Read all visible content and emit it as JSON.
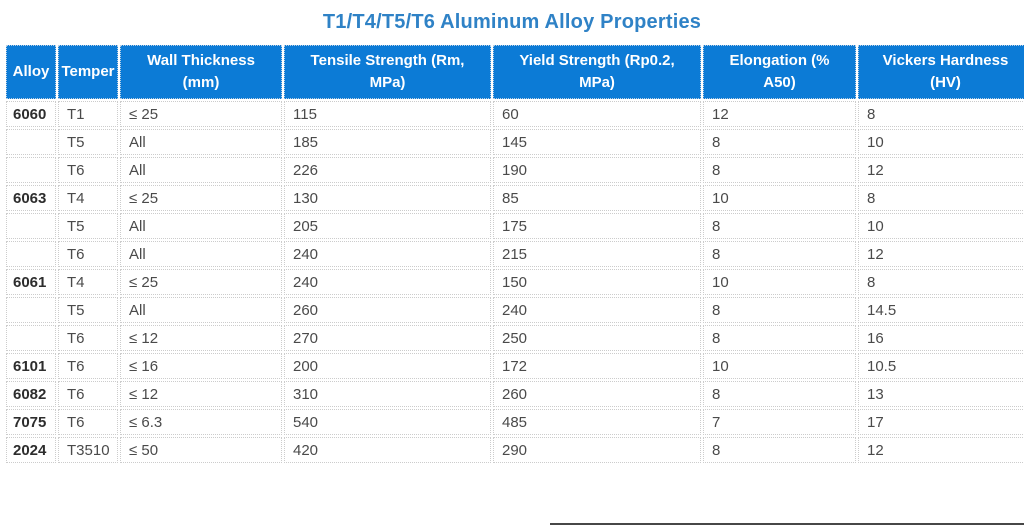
{
  "page": {
    "title": "T1/T4/T5/T6 Aluminum Alloy Properties"
  },
  "colors": {
    "header_bg": "#0c7bd6",
    "header_text": "#ffffff",
    "title": "#2f82c6"
  },
  "table": {
    "columns": [
      {
        "key": "alloy",
        "label": "Alloy"
      },
      {
        "key": "temper",
        "label": "Temper"
      },
      {
        "key": "wall_thickness",
        "label": "Wall Thickness (mm)"
      },
      {
        "key": "tensile_strength",
        "label": "Tensile Strength (Rm, MPa)"
      },
      {
        "key": "yield_strength",
        "label": "Yield Strength (Rp0.2, MPa)"
      },
      {
        "key": "elongation",
        "label": "Elongation (% A50)"
      },
      {
        "key": "vickers_hardness",
        "label": "Vickers Hardness (HV)"
      }
    ],
    "rows": [
      [
        "6060",
        "T1",
        "≤ 25",
        "115",
        "60",
        "12",
        "8"
      ],
      [
        "",
        "T5",
        "All",
        "185",
        "145",
        "8",
        "10"
      ],
      [
        "",
        "T6",
        "All",
        "226",
        "190",
        "8",
        "12"
      ],
      [
        "6063",
        "T4",
        "≤ 25",
        "130",
        "85",
        "10",
        "8"
      ],
      [
        "",
        "T5",
        "All",
        "205",
        "175",
        "8",
        "10"
      ],
      [
        "",
        "T6",
        "All",
        "240",
        "215",
        "8",
        "12"
      ],
      [
        "6061",
        "T4",
        "≤ 25",
        "240",
        "150",
        "10",
        "8"
      ],
      [
        "",
        "T5",
        "All",
        "260",
        "240",
        "8",
        "14.5"
      ],
      [
        "",
        "T6",
        "≤ 12",
        "270",
        "250",
        "8",
        "16"
      ],
      [
        "6101",
        "T6",
        "≤ 16",
        "200",
        "172",
        "10",
        "10.5"
      ],
      [
        "6082",
        "T6",
        "≤ 12",
        "310",
        "260",
        "8",
        "13"
      ],
      [
        "7075",
        "T6",
        "≤ 6.3",
        "540",
        "485",
        "7",
        "17"
      ],
      [
        "2024",
        "T3510",
        "≤ 50",
        "420",
        "290",
        "8",
        "12"
      ]
    ]
  }
}
